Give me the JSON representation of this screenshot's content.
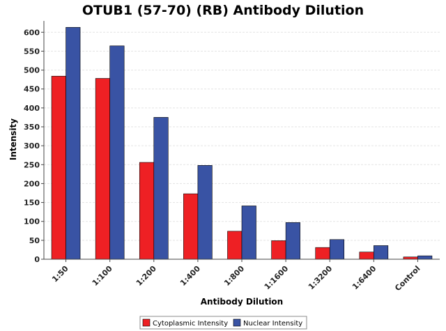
{
  "chart_data": {
    "type": "bar",
    "title": "OTUB1 (57-70) (RB) Antibody Dilution",
    "xlabel": "Antibody Dilution",
    "ylabel": "Intensity",
    "categories": [
      "1:50",
      "1:100",
      "1:200",
      "1:400",
      "1:800",
      "1:1600",
      "1:3200",
      "1:6400",
      "Control"
    ],
    "series": [
      {
        "name": "Cytoplasmic Intensity",
        "color": "#ee2024",
        "values": [
          484,
          478,
          256,
          173,
          74,
          49,
          31,
          19,
          6
        ]
      },
      {
        "name": "Nuclear Intensity",
        "color": "#3953a4",
        "values": [
          613,
          564,
          375,
          248,
          141,
          97,
          52,
          36,
          9
        ]
      }
    ],
    "ylim": [
      0,
      630
    ],
    "yticks": [
      0,
      50,
      100,
      150,
      200,
      250,
      300,
      350,
      400,
      450,
      500,
      550,
      600
    ],
    "grid": true,
    "legend_position": "bottom"
  }
}
